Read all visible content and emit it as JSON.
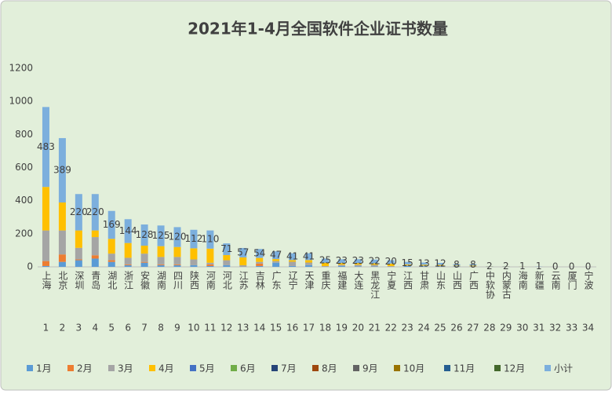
{
  "chart_data": {
    "type": "stacked_bar",
    "title": "2021年1-4月全国软件企业证书数量",
    "categories": [
      "上海",
      "北京",
      "深圳",
      "青岛",
      "湖北",
      "浙江",
      "安徽",
      "湖南",
      "四川",
      "陕西",
      "河南",
      "河北",
      "江苏",
      "吉林",
      "广东",
      "辽宁",
      "天津",
      "重庆",
      "福建",
      "大连",
      "黑龙江",
      "宁夏",
      "江西",
      "甘肃",
      "山东",
      "山西",
      "广西",
      "中软协",
      "内蒙古",
      "海南",
      "新疆",
      "云南",
      "厦门",
      "宁波"
    ],
    "index_labels": [
      1,
      2,
      3,
      4,
      5,
      6,
      7,
      8,
      9,
      10,
      11,
      12,
      13,
      14,
      15,
      16,
      17,
      18,
      19,
      20,
      21,
      22,
      23,
      24,
      25,
      26,
      27,
      28,
      29,
      30,
      31,
      32,
      33,
      34
    ],
    "ylim": [
      0,
      1200
    ],
    "yticks": [
      0,
      200,
      400,
      600,
      800,
      1000,
      1200
    ],
    "grid": false,
    "legend": "bottom",
    "series": [
      {
        "name": "1月",
        "color": "#5B9BD5",
        "values": [
          5,
          30,
          40,
          50,
          30,
          10,
          25,
          10,
          10,
          10,
          5,
          10,
          0,
          5,
          25,
          5,
          10,
          0,
          5,
          3,
          2,
          0,
          5,
          3,
          2,
          2,
          0,
          0,
          0,
          0,
          0,
          0,
          0,
          0
        ]
      },
      {
        "name": "2月",
        "color": "#ED7D31",
        "values": [
          30,
          45,
          5,
          20,
          10,
          5,
          5,
          5,
          5,
          0,
          10,
          0,
          0,
          15,
          0,
          0,
          0,
          0,
          0,
          0,
          0,
          0,
          0,
          0,
          0,
          0,
          0,
          0,
          0,
          0,
          0,
          0,
          0,
          0
        ]
      },
      {
        "name": "3月",
        "color": "#A5A5A5",
        "values": [
          185,
          145,
          70,
          110,
          40,
          40,
          50,
          45,
          45,
          35,
          10,
          30,
          10,
          10,
          10,
          26,
          16,
          5,
          8,
          10,
          10,
          5,
          5,
          5,
          5,
          3,
          4,
          1,
          1,
          0,
          1,
          0,
          0,
          0
        ]
      },
      {
        "name": "4月",
        "color": "#FFC000",
        "values": [
          263,
          169,
          105,
          40,
          89,
          89,
          48,
          65,
          60,
          67,
          85,
          31,
          47,
          24,
          12,
          10,
          15,
          20,
          10,
          10,
          10,
          15,
          5,
          5,
          5,
          3,
          4,
          1,
          1,
          1,
          0,
          0,
          0,
          0
        ]
      },
      {
        "name": "5月",
        "color": "#4472C4",
        "values": [
          0,
          0,
          0,
          0,
          0,
          0,
          0,
          0,
          0,
          0,
          0,
          0,
          0,
          0,
          0,
          0,
          0,
          0,
          0,
          0,
          0,
          0,
          0,
          0,
          0,
          0,
          0,
          0,
          0,
          0,
          0,
          0,
          0,
          0
        ]
      },
      {
        "name": "6月",
        "color": "#70AD47",
        "values": [
          0,
          0,
          0,
          0,
          0,
          0,
          0,
          0,
          0,
          0,
          0,
          0,
          0,
          0,
          0,
          0,
          0,
          0,
          0,
          0,
          0,
          0,
          0,
          0,
          0,
          0,
          0,
          0,
          0,
          0,
          0,
          0,
          0,
          0
        ]
      },
      {
        "name": "7月",
        "color": "#264478",
        "values": [
          0,
          0,
          0,
          0,
          0,
          0,
          0,
          0,
          0,
          0,
          0,
          0,
          0,
          0,
          0,
          0,
          0,
          0,
          0,
          0,
          0,
          0,
          0,
          0,
          0,
          0,
          0,
          0,
          0,
          0,
          0,
          0,
          0,
          0
        ]
      },
      {
        "name": "8月",
        "color": "#9E480E",
        "values": [
          0,
          0,
          0,
          0,
          0,
          0,
          0,
          0,
          0,
          0,
          0,
          0,
          0,
          0,
          0,
          0,
          0,
          0,
          0,
          0,
          0,
          0,
          0,
          0,
          0,
          0,
          0,
          0,
          0,
          0,
          0,
          0,
          0,
          0
        ]
      },
      {
        "name": "9月",
        "color": "#636363",
        "values": [
          0,
          0,
          0,
          0,
          0,
          0,
          0,
          0,
          0,
          0,
          0,
          0,
          0,
          0,
          0,
          0,
          0,
          0,
          0,
          0,
          0,
          0,
          0,
          0,
          0,
          0,
          0,
          0,
          0,
          0,
          0,
          0,
          0,
          0
        ]
      },
      {
        "name": "10月",
        "color": "#997300",
        "values": [
          0,
          0,
          0,
          0,
          0,
          0,
          0,
          0,
          0,
          0,
          0,
          0,
          0,
          0,
          0,
          0,
          0,
          0,
          0,
          0,
          0,
          0,
          0,
          0,
          0,
          0,
          0,
          0,
          0,
          0,
          0,
          0,
          0,
          0
        ]
      },
      {
        "name": "11月",
        "color": "#255E91",
        "values": [
          0,
          0,
          0,
          0,
          0,
          0,
          0,
          0,
          0,
          0,
          0,
          0,
          0,
          0,
          0,
          0,
          0,
          0,
          0,
          0,
          0,
          0,
          0,
          0,
          0,
          0,
          0,
          0,
          0,
          0,
          0,
          0,
          0,
          0
        ]
      },
      {
        "name": "12月",
        "color": "#43682B",
        "values": [
          0,
          0,
          0,
          0,
          0,
          0,
          0,
          0,
          0,
          0,
          0,
          0,
          0,
          0,
          0,
          0,
          0,
          0,
          0,
          0,
          0,
          0,
          0,
          0,
          0,
          0,
          0,
          0,
          0,
          0,
          0,
          0,
          0,
          0
        ]
      },
      {
        "name": "小计",
        "color": "#7CAFDD",
        "data_labels": true,
        "values": [
          483,
          389,
          220,
          220,
          169,
          144,
          128,
          125,
          120,
          112,
          110,
          71,
          57,
          54,
          47,
          41,
          41,
          25,
          23,
          23,
          22,
          20,
          15,
          13,
          12,
          8,
          8,
          2,
          2,
          1,
          1,
          0,
          0,
          0
        ]
      }
    ]
  }
}
